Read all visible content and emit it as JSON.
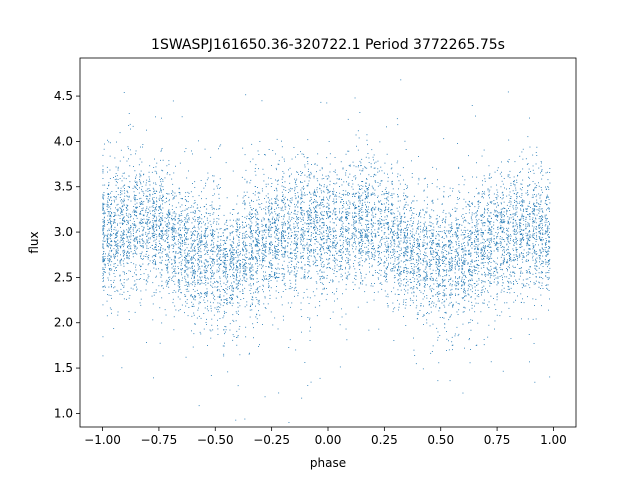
{
  "chart_data": {
    "type": "scatter",
    "title": "1SWASPJ161650.36-320722.1 Period 3772265.75s",
    "xlabel": "phase",
    "ylabel": "flux",
    "xlim": [
      -1.1,
      1.1
    ],
    "ylim": [
      0.85,
      4.92
    ],
    "x_ticks": [
      -1.0,
      -0.75,
      -0.5,
      -0.25,
      0.0,
      0.25,
      0.5,
      0.75,
      1.0
    ],
    "x_tick_labels": [
      "−1.00",
      "−0.75",
      "−0.50",
      "−0.25",
      "0.00",
      "0.25",
      "0.50",
      "0.75",
      "1.00"
    ],
    "y_ticks": [
      1.0,
      1.5,
      2.0,
      2.5,
      3.0,
      3.5,
      4.0,
      4.5
    ],
    "y_tick_labels": [
      "1.0",
      "1.5",
      "2.0",
      "2.5",
      "3.0",
      "3.5",
      "4.0",
      "4.5"
    ],
    "grid": false,
    "marker_color": "#1f77b4",
    "phase_curve": {
      "phase": [
        0.0,
        0.05,
        0.1,
        0.15,
        0.2,
        0.25,
        0.3,
        0.35,
        0.4,
        0.45,
        0.5,
        0.55,
        0.6,
        0.65,
        0.7,
        0.75,
        0.8,
        0.85,
        0.9,
        0.95,
        1.0
      ],
      "median_flux": [
        3.0,
        3.0,
        3.05,
        3.1,
        3.1,
        3.05,
        2.95,
        2.85,
        2.75,
        2.7,
        2.65,
        2.6,
        2.7,
        2.8,
        2.85,
        2.95,
        3.0,
        3.0,
        3.05,
        3.0,
        3.0
      ],
      "scatter_sigma": 0.35
    }
  }
}
